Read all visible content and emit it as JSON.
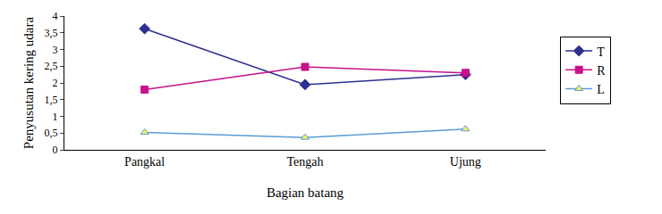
{
  "chart_data": {
    "type": "line",
    "x_label": "Bagian batang",
    "y_label": "Penyusutan kering udara",
    "categories": [
      "Pangkal",
      "Tengah",
      "Ujung"
    ],
    "series": [
      {
        "name": "T",
        "color": "#2b2f8f",
        "marker": "diamond",
        "values": [
          3.62,
          1.95,
          2.25
        ]
      },
      {
        "name": "R",
        "color": "#c8108c",
        "marker": "square",
        "values": [
          1.8,
          2.48,
          2.3
        ]
      },
      {
        "name": "L",
        "color": "#5b9bd5",
        "marker": "triangle-up",
        "values": [
          0.52,
          0.37,
          0.62
        ]
      }
    ],
    "ylim": [
      0,
      4
    ],
    "yticks": [
      0,
      {
        "value": 0.5,
        "label": "0,5"
      },
      1,
      {
        "value": 1.5,
        "label": "1,5"
      },
      2,
      {
        "value": 2.5,
        "label": "2,5"
      },
      3,
      {
        "value": 3.5,
        "label": "3,5"
      },
      4
    ],
    "grid": false,
    "legend": "right"
  }
}
